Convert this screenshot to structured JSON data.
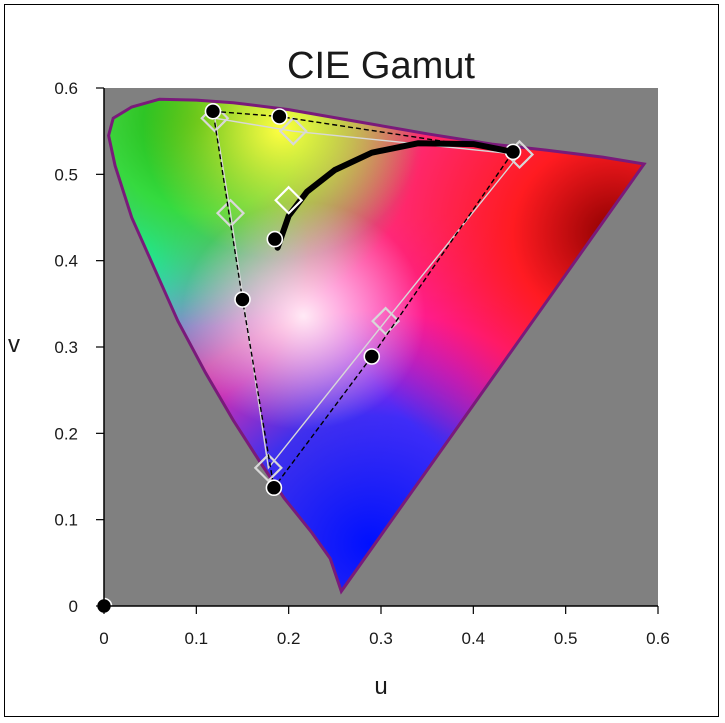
{
  "chart_data": {
    "type": "scatter",
    "title": "CIE Gamut",
    "xlabel": "u",
    "ylabel": "v",
    "xlim": [
      0,
      0.6
    ],
    "ylim": [
      0,
      0.6
    ],
    "x_ticks": [
      "0",
      "0.1",
      "0.2",
      "0.3",
      "0.4",
      "0.5",
      "0.6"
    ],
    "y_ticks": [
      "0",
      "0.1",
      "0.2",
      "0.3",
      "0.4",
      "0.5",
      "0.6"
    ],
    "grid": false,
    "plot_background": "#808080",
    "spectral_locus": [
      [
        0.257,
        0.017
      ],
      [
        0.245,
        0.055
      ],
      [
        0.225,
        0.085
      ],
      [
        0.195,
        0.125
      ],
      [
        0.17,
        0.165
      ],
      [
        0.14,
        0.215
      ],
      [
        0.11,
        0.27
      ],
      [
        0.08,
        0.33
      ],
      [
        0.055,
        0.39
      ],
      [
        0.03,
        0.45
      ],
      [
        0.012,
        0.51
      ],
      [
        0.005,
        0.545
      ],
      [
        0.01,
        0.565
      ],
      [
        0.03,
        0.578
      ],
      [
        0.06,
        0.587
      ],
      [
        0.1,
        0.586
      ],
      [
        0.14,
        0.583
      ],
      [
        0.2,
        0.575
      ],
      [
        0.28,
        0.56
      ],
      [
        0.35,
        0.547
      ],
      [
        0.42,
        0.535
      ],
      [
        0.48,
        0.528
      ],
      [
        0.54,
        0.52
      ],
      [
        0.585,
        0.512
      ]
    ],
    "series": [
      {
        "style": "filled-circles-dashed",
        "color": "#000000",
        "points": [
          [
            0.118,
            0.573
          ],
          [
            0.19,
            0.567
          ],
          [
            0.443,
            0.526
          ],
          [
            0.29,
            0.289
          ],
          [
            0.184,
            0.137
          ],
          [
            0.15,
            0.355
          ]
        ],
        "closed": true
      },
      {
        "style": "open-diamonds-solid",
        "color": "#d8d8d8",
        "points": [
          [
            0.12,
            0.565
          ],
          [
            0.205,
            0.55
          ],
          [
            0.45,
            0.523
          ],
          [
            0.305,
            0.33
          ],
          [
            0.178,
            0.16
          ],
          [
            0.137,
            0.455
          ]
        ],
        "closed": true
      },
      {
        "style": "thick-curve",
        "color": "#000000",
        "points": [
          [
            0.188,
            0.415
          ],
          [
            0.2,
            0.452
          ],
          [
            0.22,
            0.48
          ],
          [
            0.25,
            0.505
          ],
          [
            0.29,
            0.525
          ],
          [
            0.34,
            0.536
          ],
          [
            0.4,
            0.535
          ],
          [
            0.443,
            0.526
          ]
        ]
      },
      {
        "style": "single-points",
        "points": [
          {
            "x": 0.185,
            "y": 0.425,
            "marker": "filled-circle",
            "color": "#000000"
          },
          {
            "x": 0.2,
            "y": 0.47,
            "marker": "open-diamond",
            "color": "#ffffff"
          },
          {
            "x": 0.0,
            "y": 0.0,
            "marker": "filled-circle",
            "color": "#000000"
          }
        ]
      }
    ]
  }
}
